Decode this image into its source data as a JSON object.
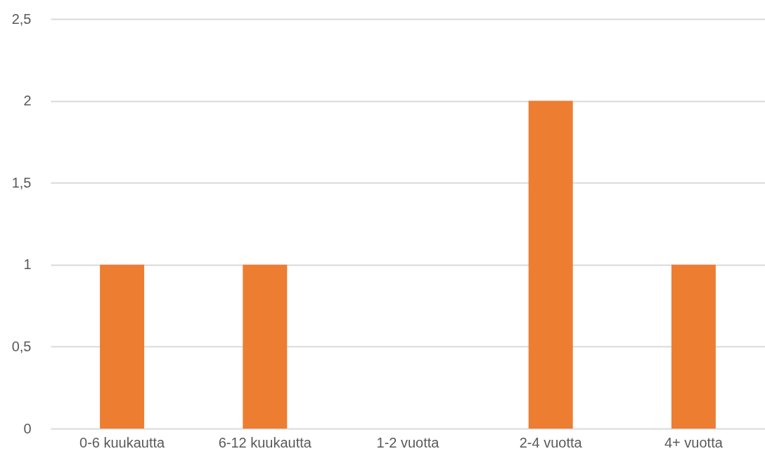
{
  "chart_data": {
    "type": "bar",
    "categories": [
      "0-6 kuukautta",
      "6-12 kuukautta",
      "1-2 vuotta",
      "2-4 vuotta",
      "4+ vuotta"
    ],
    "values": [
      1,
      1,
      0,
      2,
      1
    ],
    "color": "#ed7d31",
    "ylim": [
      0,
      2.5
    ],
    "yticks": [
      0,
      {
        "value": 0.5,
        "label": "0,5"
      },
      1,
      {
        "value": 1.5,
        "label": "1,5"
      },
      2,
      {
        "value": 2.5,
        "label": "2,5"
      }
    ],
    "grid": "y"
  }
}
